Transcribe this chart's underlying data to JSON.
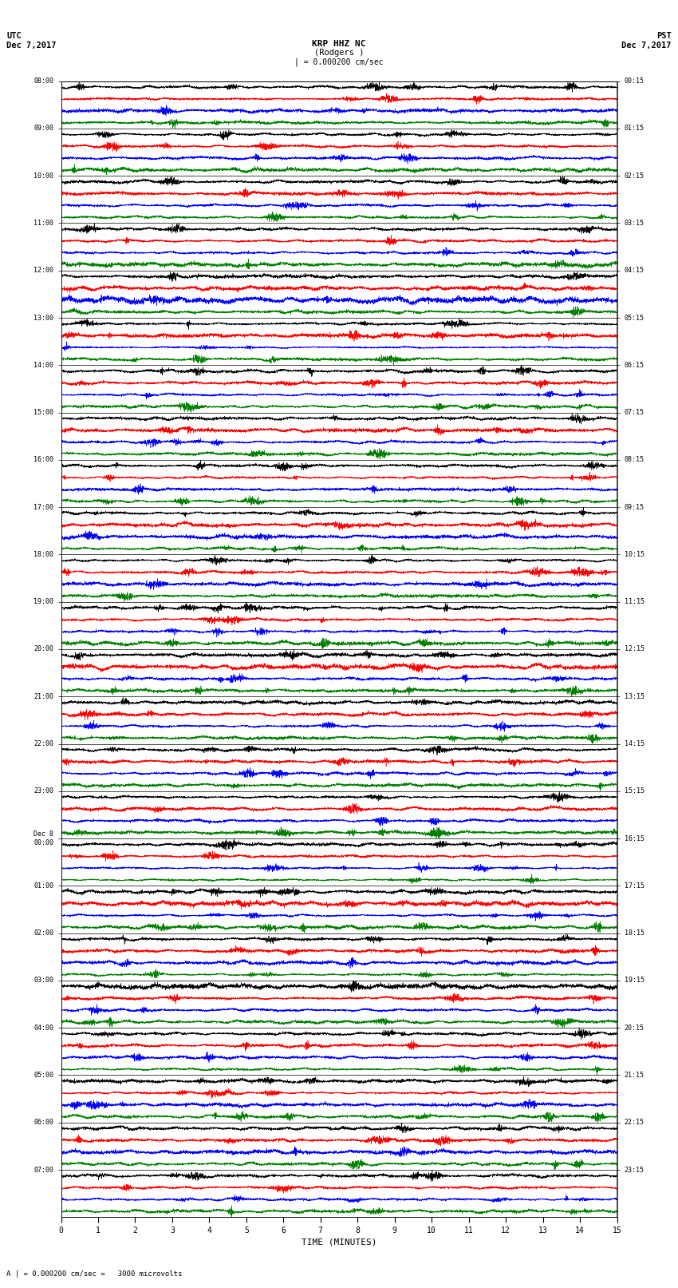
{
  "title_center": "KRP HHZ NC",
  "title_sub": "(Rodgers )",
  "scale_label": "| = 0.000200 cm/sec",
  "footer_label": "A | = 0.000200 cm/sec =   3000 microvolts",
  "xlabel": "TIME (MINUTES)",
  "left_times": [
    "08:00",
    "09:00",
    "10:00",
    "11:00",
    "12:00",
    "13:00",
    "14:00",
    "15:00",
    "16:00",
    "17:00",
    "18:00",
    "19:00",
    "20:00",
    "21:00",
    "22:00",
    "23:00",
    "Dec 8\n00:00",
    "01:00",
    "02:00",
    "03:00",
    "04:00",
    "05:00",
    "06:00",
    "07:00"
  ],
  "right_times": [
    "00:15",
    "01:15",
    "02:15",
    "03:15",
    "04:15",
    "05:15",
    "06:15",
    "07:15",
    "08:15",
    "09:15",
    "10:15",
    "11:15",
    "12:15",
    "13:15",
    "14:15",
    "15:15",
    "16:15",
    "17:15",
    "18:15",
    "19:15",
    "20:15",
    "21:15",
    "22:15",
    "23:15"
  ],
  "n_rows": 24,
  "n_traces_per_row": 4,
  "trace_colors": [
    "black",
    "red",
    "blue",
    "green"
  ],
  "minutes_per_row": 15,
  "background_color": "white",
  "fig_width": 8.5,
  "fig_height": 16.13,
  "dpi": 100,
  "noise_seed": 42
}
